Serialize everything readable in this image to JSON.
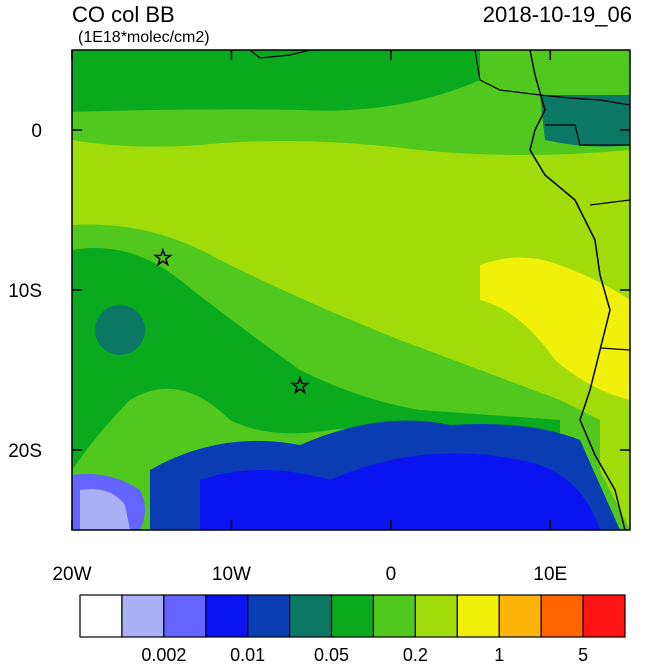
{
  "chart_data": {
    "type": "map",
    "title": "CO col BB",
    "subtitle": "(1E18*molec/cm2)",
    "date": "2018-10-19_06",
    "xlim": [
      -20,
      15
    ],
    "ylim": [
      -25,
      5
    ],
    "xticks": [
      {
        "value": -20,
        "label": "20W"
      },
      {
        "value": -10,
        "label": "10W"
      },
      0,
      {
        "value": 10,
        "label": "10E"
      }
    ],
    "yticks": [
      0,
      {
        "value": -10,
        "label": "10S"
      },
      {
        "value": -20,
        "label": "20S"
      }
    ],
    "markers": [
      {
        "lon": -14.3,
        "lat": -8
      },
      {
        "lon": -5.7,
        "lat": -16
      }
    ],
    "colorbar": {
      "colors": [
        "#ffffff",
        "#aab0f5",
        "#6464ff",
        "#0a14f0",
        "#0a3cb4",
        "#0a7864",
        "#0aaa1e",
        "#50c81e",
        "#a0dc0a",
        "#f0f00a",
        "#ffb40a",
        "#ff6400",
        "#ff1414"
      ],
      "labels": [
        0.002,
        0.01,
        0.05,
        0.2,
        1,
        5
      ]
    }
  }
}
